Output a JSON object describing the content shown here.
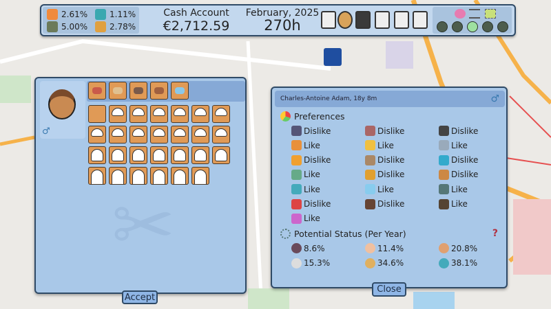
{
  "topbar": {
    "rates": [
      {
        "icon": "growth-chart-icon",
        "value": "2.61%"
      },
      {
        "icon": "investment-icon",
        "value": "1.11%"
      },
      {
        "icon": "bank-icon",
        "value": "5.00%"
      },
      {
        "icon": "money-house-icon",
        "value": "2.78%"
      }
    ],
    "cash_label": "Cash Account",
    "cash_value": "€2,712.59",
    "date": "February, 2025",
    "hours": "270h",
    "menu_icons": [
      "document-list-icon",
      "people-network-icon",
      "stock-chart-icon",
      "report-icon",
      "spreadsheet-icon",
      "map-compass-icon"
    ],
    "util_icons": [
      "music-icon",
      "list-icon",
      "screenshot-icon"
    ],
    "speed_buttons": [
      "pause-icon",
      "play-slow-icon",
      "play-icon",
      "fast-forward-icon",
      "fastest-icon"
    ],
    "active_speed": "play-icon"
  },
  "customize": {
    "gender_icon": "male-symbol-icon",
    "tool_tabs": [
      "haircut-tab",
      "beard-tab",
      "cosmetics-tab",
      "eyebrows-tab",
      "glasses-tab"
    ],
    "accept_label": "Accept"
  },
  "person": {
    "header": "Charles-Antoine Adam, 18y 8m",
    "gender_icon": "male-symbol-icon",
    "preferences_title": "Preferences",
    "preferences": [
      {
        "icon": "clock-icon",
        "value": "Dislike"
      },
      {
        "icon": "mind-network-icon",
        "value": "Dislike"
      },
      {
        "icon": "dumbbell-icon",
        "value": "Dislike"
      },
      {
        "icon": "food-icon",
        "value": "Like"
      },
      {
        "icon": "sleep-moon-icon",
        "value": "Like"
      },
      {
        "icon": "drawer-icon",
        "value": "Like"
      },
      {
        "icon": "slippers-icon",
        "value": "Dislike"
      },
      {
        "icon": "robot-icon",
        "value": "Dislike"
      },
      {
        "icon": "chat-icon",
        "value": "Dislike"
      },
      {
        "icon": "park-bench-icon",
        "value": "Like"
      },
      {
        "icon": "police-badge-icon",
        "value": "Dislike"
      },
      {
        "icon": "paint-brushes-icon",
        "value": "Dislike"
      },
      {
        "icon": "bottle-icon",
        "value": "Like"
      },
      {
        "icon": "diamond-crown-icon",
        "value": "Like"
      },
      {
        "icon": "car-icon",
        "value": "Like"
      },
      {
        "icon": "shopping-bags-icon",
        "value": "Dislike"
      },
      {
        "icon": "coffee-beans-icon",
        "value": "Dislike"
      },
      {
        "icon": "liquor-bottles-icon",
        "value": "Like"
      },
      {
        "icon": "flower-icon",
        "value": "Like"
      }
    ],
    "status_title": "Potential Status (Per Year)",
    "help_icon": "question-mark-icon",
    "statuses": [
      {
        "icon": "bug-icon",
        "value": "8.6%"
      },
      {
        "icon": "head-stress-icon",
        "value": "11.4%"
      },
      {
        "icon": "hand-icon",
        "value": "20.8%"
      },
      {
        "icon": "ghost-icon",
        "value": "15.3%"
      },
      {
        "icon": "dizzy-face-icon",
        "value": "34.6%"
      },
      {
        "icon": "chess-piece-icon",
        "value": "38.1%"
      }
    ],
    "close_label": "Close"
  },
  "colors": {
    "panel": "#a9c8e8",
    "header": "#86a9d6",
    "border": "#2f4a66",
    "tile": "#e09a56",
    "active_speed": "#9ee0a0"
  }
}
